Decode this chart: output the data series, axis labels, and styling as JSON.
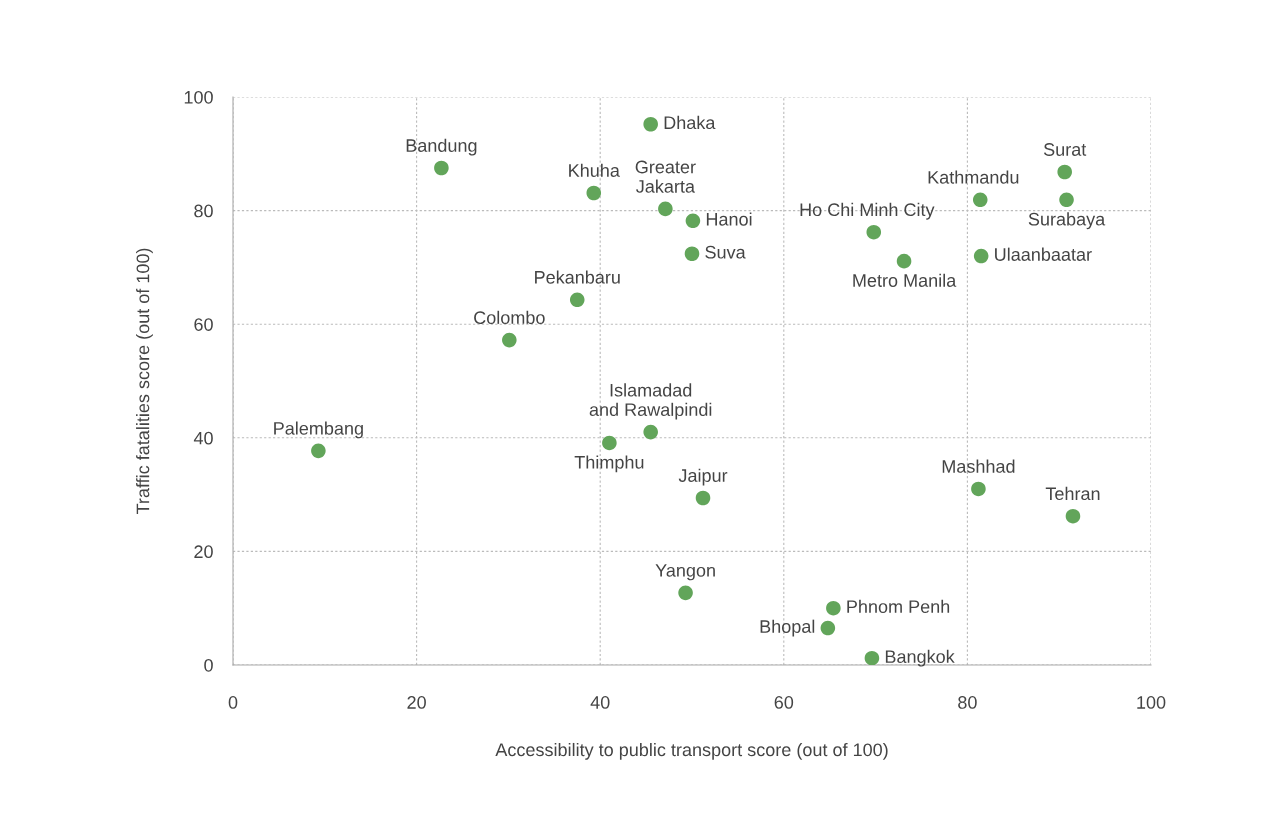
{
  "chart_data": {
    "type": "scatter",
    "xlabel": "Accessibility to public transport score (out of 100)",
    "ylabel": "Traffic fatalities score (out of 100)",
    "x": [
      9.3,
      22.7,
      30.1,
      37.5,
      39.3,
      45.5,
      47.1,
      50.1,
      50.0,
      45.5,
      41.0,
      51.2,
      49.3,
      65.4,
      64.8,
      69.6,
      69.8,
      73.1,
      81.4,
      81.5,
      90.6,
      90.8,
      81.2,
      91.5
    ],
    "values": [
      37.7,
      87.5,
      57.2,
      64.3,
      83.1,
      95.2,
      80.3,
      78.2,
      72.4,
      41.0,
      39.1,
      29.4,
      12.7,
      10.0,
      6.5,
      1.2,
      76.2,
      71.1,
      81.9,
      72.0,
      86.8,
      81.9,
      31.0,
      26.2
    ],
    "value_labels": [
      "Palembang",
      "Bandung",
      "Colombo",
      "Pekanbaru",
      "Khuha",
      "Dhaka",
      "Greater\nJakarta",
      "Hanoi",
      "Suva",
      "Islamadad\nand Rawalpindi",
      "Thimphu",
      "Jaipur",
      "Yangon",
      "Phnom Penh",
      "Bhopal",
      "Bangkok",
      "Ho Chi Minh City",
      "Metro Manila",
      "Kathmandu",
      "Ulaanbaatar",
      "Surat",
      "Surabaya",
      "Mashhad",
      "Tehran"
    ],
    "color": "#62a55a",
    "marker": "circle",
    "xlim": [
      0,
      100
    ],
    "ylim": [
      0,
      100
    ],
    "xticks": [
      0,
      20,
      40,
      60,
      80,
      100
    ],
    "yticks": [
      0,
      20,
      40,
      60,
      80,
      100
    ],
    "grid": true,
    "legend": false
  }
}
